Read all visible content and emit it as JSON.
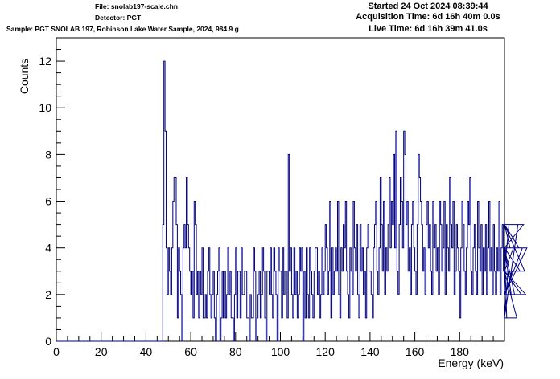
{
  "header": {
    "file": "File: snolab197-scale.chn",
    "detector": "Detector: PGT",
    "sample": "Sample: PGT SNOLAB 197, Robinson Lake Water Sample, 2024, 984.9 g",
    "started": "Started 24 Oct 2024 08:39:44",
    "acquisition_time": "Acquisition Time: 6d 16h 40m 0.0s",
    "live_time": "Live Time: 6d 16h 39m 41.0s"
  },
  "chart_data": {
    "type": "histogram",
    "title": "",
    "xlabel": "Energy (keV)",
    "ylabel": "Counts",
    "xlim": [
      0,
      200
    ],
    "ylim": [
      0,
      13
    ],
    "x_ticks": [
      0,
      20,
      40,
      60,
      80,
      100,
      120,
      140,
      160,
      180
    ],
    "y_ticks": [
      0,
      2,
      4,
      6,
      8,
      10,
      12
    ],
    "grid": false,
    "line_color": "#000080",
    "bin_width_keV": 0.5,
    "x_start_keV": 0,
    "counts": [
      0,
      0,
      0,
      0,
      0,
      0,
      0,
      0,
      0,
      0,
      0,
      0,
      0,
      0,
      0,
      0,
      0,
      0,
      0,
      0,
      0,
      0,
      0,
      0,
      0,
      0,
      0,
      0,
      0,
      0,
      0,
      0,
      0,
      0,
      0,
      0,
      0,
      0,
      0,
      0,
      0,
      0,
      0,
      0,
      0,
      0,
      0,
      0,
      0,
      0,
      0,
      0,
      0,
      0,
      0,
      0,
      0,
      0,
      0,
      0,
      0,
      0,
      0,
      0,
      0,
      0,
      0,
      0,
      0,
      0,
      0,
      0,
      0,
      0,
      0,
      0,
      0,
      0,
      0,
      0,
      0,
      0,
      0,
      0,
      0,
      0,
      0,
      0,
      0,
      0,
      0,
      0,
      0,
      0,
      0,
      5,
      12,
      9,
      4,
      2,
      4,
      3,
      2,
      4,
      6,
      7,
      7,
      5,
      1,
      4,
      3,
      2,
      0,
      4,
      5,
      4,
      7,
      5,
      4,
      3,
      2,
      3,
      1,
      6,
      5,
      2,
      3,
      1,
      3,
      2,
      4,
      1,
      1,
      2,
      1,
      3,
      4,
      2,
      1,
      2,
      3,
      1,
      0,
      2,
      3,
      4,
      0,
      1,
      3,
      1,
      3,
      1,
      2,
      4,
      2,
      3,
      1,
      1,
      0,
      2,
      4,
      1,
      3,
      3,
      1,
      4,
      2,
      2,
      3,
      3,
      1,
      1,
      0,
      2,
      1,
      1,
      4,
      3,
      0,
      1,
      2,
      3,
      1,
      2,
      4,
      3,
      1,
      0,
      3,
      3,
      2,
      4,
      2,
      1,
      4,
      3,
      2,
      0,
      4,
      3,
      3,
      1,
      4,
      2,
      3,
      3,
      1,
      8,
      3,
      4,
      2,
      1,
      4,
      2,
      3,
      1,
      2,
      4,
      3,
      4,
      0,
      3,
      1,
      4,
      2,
      1,
      4,
      3,
      2,
      1,
      3,
      4,
      4,
      2,
      3,
      1,
      2,
      4,
      2,
      3,
      5,
      4,
      2,
      3,
      6,
      1,
      4,
      2,
      3,
      4,
      3,
      6,
      2,
      1,
      4,
      3,
      5,
      4,
      6,
      3,
      2,
      1,
      4,
      3,
      2,
      6,
      4,
      3,
      5,
      2,
      1,
      5,
      3,
      4,
      2,
      3,
      1,
      4,
      5,
      3,
      3,
      2,
      1,
      4,
      5,
      6,
      3,
      2,
      4,
      7,
      5,
      3,
      6,
      2,
      4,
      3,
      5,
      7,
      4,
      6,
      5,
      8,
      4,
      9,
      3,
      2,
      5,
      7,
      6,
      4,
      9,
      8,
      5,
      6,
      3,
      4,
      2,
      5,
      6,
      4,
      3,
      2,
      5,
      8,
      7,
      6,
      5,
      3,
      4,
      2,
      5,
      6,
      4,
      5,
      3,
      2,
      6,
      4,
      5,
      3,
      4,
      2,
      6,
      5,
      3,
      4,
      6,
      2,
      5,
      4,
      3,
      7,
      5,
      4,
      6,
      2,
      3,
      5,
      4,
      3,
      1,
      4,
      6,
      5,
      3,
      2,
      4,
      6,
      5,
      7,
      3,
      2,
      4,
      5,
      3,
      2,
      6,
      4,
      3,
      5,
      2,
      4,
      3,
      5,
      2,
      4,
      6,
      3,
      4,
      2,
      5,
      3,
      2,
      4,
      3,
      6,
      2,
      4,
      5,
      3,
      2,
      4,
      1,
      3,
      5,
      4,
      2,
      3,
      4,
      2,
      3,
      1,
      5,
      4,
      3,
      2,
      4,
      5,
      3,
      2,
      4
    ]
  }
}
